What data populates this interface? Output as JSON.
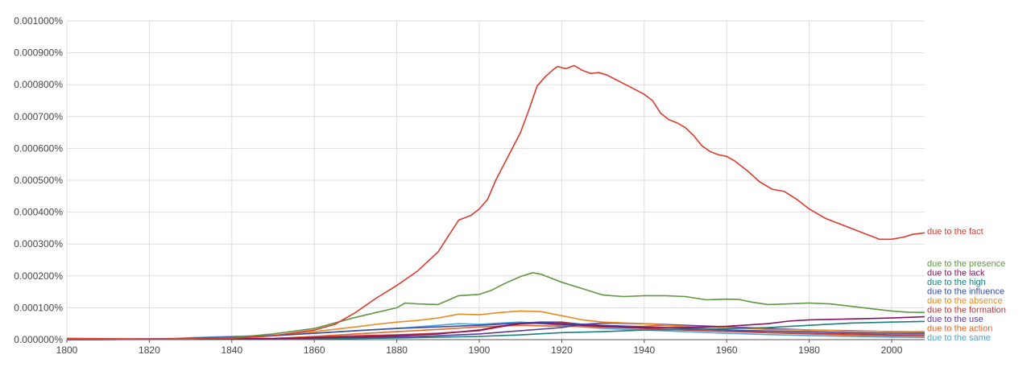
{
  "chart_data": {
    "type": "line",
    "title": "",
    "xlabel": "",
    "ylabel": "",
    "xlim": [
      1800,
      2008
    ],
    "ylim": [
      0,
      0.001
    ],
    "grid": true,
    "legend_position": "right-end-of-lines",
    "x_ticks": [
      1800,
      1820,
      1840,
      1860,
      1880,
      1900,
      1920,
      1940,
      1960,
      1980,
      2000
    ],
    "x_tick_labels": [
      "1800",
      "1820",
      "1840",
      "1860",
      "1880",
      "1900",
      "1920",
      "1940",
      "1960",
      "1980",
      "2000"
    ],
    "y_ticks": [
      0,
      0.0001,
      0.0002,
      0.0003,
      0.0004,
      0.0005,
      0.0006,
      0.0007,
      0.0008,
      0.0009,
      0.001
    ],
    "y_tick_labels": [
      "0.000000%",
      "0.000100%",
      "0.000200%",
      "0.000300%",
      "0.000400%",
      "0.000500%",
      "0.000600%",
      "0.000700%",
      "0.000800%",
      "0.000900%",
      "0.001000%"
    ],
    "series": [
      {
        "name": "due to the fact",
        "color": "#db3b2e",
        "points": [
          [
            1800,
            4e-06
          ],
          [
            1820,
            2e-06
          ],
          [
            1840,
            4e-06
          ],
          [
            1850,
            1.2e-05
          ],
          [
            1860,
            3e-05
          ],
          [
            1865,
            4.8e-05
          ],
          [
            1870,
            8.5e-05
          ],
          [
            1875,
            0.00013
          ],
          [
            1880,
            0.00017
          ],
          [
            1885,
            0.000215
          ],
          [
            1890,
            0.000275
          ],
          [
            1893,
            0.000335
          ],
          [
            1895,
            0.000375
          ],
          [
            1898,
            0.00039
          ],
          [
            1900,
            0.00041
          ],
          [
            1902,
            0.00044
          ],
          [
            1904,
            0.0005
          ],
          [
            1906,
            0.00055
          ],
          [
            1908,
            0.0006
          ],
          [
            1910,
            0.00065
          ],
          [
            1912,
            0.00072
          ],
          [
            1914,
            0.000795
          ],
          [
            1916,
            0.000825
          ],
          [
            1918,
            0.000848
          ],
          [
            1919,
            0.000857
          ],
          [
            1921,
            0.00085
          ],
          [
            1923,
            0.00086
          ],
          [
            1925,
            0.000845
          ],
          [
            1927,
            0.000835
          ],
          [
            1929,
            0.000838
          ],
          [
            1931,
            0.00083
          ],
          [
            1934,
            0.00081
          ],
          [
            1937,
            0.00079
          ],
          [
            1940,
            0.00077
          ],
          [
            1942,
            0.00075
          ],
          [
            1944,
            0.00071
          ],
          [
            1946,
            0.00069
          ],
          [
            1948,
            0.00068
          ],
          [
            1950,
            0.000665
          ],
          [
            1952,
            0.00064
          ],
          [
            1954,
            0.000608
          ],
          [
            1956,
            0.00059
          ],
          [
            1958,
            0.00058
          ],
          [
            1960,
            0.000575
          ],
          [
            1962,
            0.00056
          ],
          [
            1965,
            0.00053
          ],
          [
            1968,
            0.000495
          ],
          [
            1971,
            0.000472
          ],
          [
            1974,
            0.000465
          ],
          [
            1977,
            0.00044
          ],
          [
            1980,
            0.00041
          ],
          [
            1984,
            0.00038
          ],
          [
            1988,
            0.00036
          ],
          [
            1992,
            0.00034
          ],
          [
            1995,
            0.000325
          ],
          [
            1997,
            0.000315
          ],
          [
            2000,
            0.000315
          ],
          [
            2003,
            0.000322
          ],
          [
            2005,
            0.00033
          ],
          [
            2008,
            0.000335
          ]
        ]
      },
      {
        "name": "due to the presence",
        "color": "#5e9741",
        "points": [
          [
            1800,
            1e-06
          ],
          [
            1830,
            2e-06
          ],
          [
            1840,
            6e-06
          ],
          [
            1850,
            1.8e-05
          ],
          [
            1860,
            3.5e-05
          ],
          [
            1870,
            7e-05
          ],
          [
            1875,
            8.5e-05
          ],
          [
            1880,
            0.0001
          ],
          [
            1882,
            0.000115
          ],
          [
            1885,
            0.000112
          ],
          [
            1890,
            0.00011
          ],
          [
            1895,
            0.000138
          ],
          [
            1900,
            0.000142
          ],
          [
            1903,
            0.000155
          ],
          [
            1906,
            0.000175
          ],
          [
            1910,
            0.000198
          ],
          [
            1913,
            0.00021
          ],
          [
            1915,
            0.000205
          ],
          [
            1918,
            0.00019
          ],
          [
            1920,
            0.00018
          ],
          [
            1925,
            0.00016
          ],
          [
            1930,
            0.00014
          ],
          [
            1935,
            0.000135
          ],
          [
            1940,
            0.000138
          ],
          [
            1945,
            0.000138
          ],
          [
            1950,
            0.000135
          ],
          [
            1955,
            0.000125
          ],
          [
            1960,
            0.000127
          ],
          [
            1963,
            0.000126
          ],
          [
            1966,
            0.000118
          ],
          [
            1970,
            0.00011
          ],
          [
            1975,
            0.000112
          ],
          [
            1980,
            0.000115
          ],
          [
            1985,
            0.000112
          ],
          [
            1990,
            0.000105
          ],
          [
            1995,
            9.7e-05
          ],
          [
            2000,
            9e-05
          ],
          [
            2004,
            8.6e-05
          ],
          [
            2008,
            8.5e-05
          ]
        ]
      },
      {
        "name": "due to the lack",
        "color": "#86135d",
        "points": [
          [
            1800,
            0.0
          ],
          [
            1850,
            3e-06
          ],
          [
            1870,
            8e-06
          ],
          [
            1880,
            1.2e-05
          ],
          [
            1890,
            1.8e-05
          ],
          [
            1900,
            3e-05
          ],
          [
            1905,
            4.2e-05
          ],
          [
            1910,
            5e-05
          ],
          [
            1915,
            5.2e-05
          ],
          [
            1920,
            4.8e-05
          ],
          [
            1930,
            4.2e-05
          ],
          [
            1940,
            3.8e-05
          ],
          [
            1950,
            3.8e-05
          ],
          [
            1960,
            4.2e-05
          ],
          [
            1970,
            5e-05
          ],
          [
            1975,
            5.8e-05
          ],
          [
            1980,
            6.2e-05
          ],
          [
            1990,
            6.5e-05
          ],
          [
            2000,
            6.8e-05
          ],
          [
            2008,
            7.2e-05
          ]
        ]
      },
      {
        "name": "due to the high",
        "color": "#1a7e7e",
        "points": [
          [
            1800,
            0.0
          ],
          [
            1860,
            2e-06
          ],
          [
            1880,
            5e-06
          ],
          [
            1900,
            1e-05
          ],
          [
            1910,
            1.5e-05
          ],
          [
            1920,
            2.2e-05
          ],
          [
            1930,
            2.5e-05
          ],
          [
            1940,
            3e-05
          ],
          [
            1950,
            3.2e-05
          ],
          [
            1960,
            3.4e-05
          ],
          [
            1970,
            3.8e-05
          ],
          [
            1980,
            4.5e-05
          ],
          [
            1990,
            5.2e-05
          ],
          [
            2000,
            5.5e-05
          ],
          [
            2008,
            5.7e-05
          ]
        ]
      },
      {
        "name": "due to the influence",
        "color": "#3b4ba6",
        "points": [
          [
            1800,
            0.0
          ],
          [
            1830,
            4e-06
          ],
          [
            1840,
            8e-06
          ],
          [
            1850,
            1.2e-05
          ],
          [
            1860,
            2e-05
          ],
          [
            1870,
            2.8e-05
          ],
          [
            1880,
            3.5e-05
          ],
          [
            1890,
            4e-05
          ],
          [
            1900,
            4.5e-05
          ],
          [
            1910,
            5.2e-05
          ],
          [
            1915,
            5.5e-05
          ],
          [
            1920,
            5.2e-05
          ],
          [
            1930,
            4.5e-05
          ],
          [
            1940,
            4e-05
          ],
          [
            1950,
            3.5e-05
          ],
          [
            1960,
            3e-05
          ],
          [
            1970,
            2.7e-05
          ],
          [
            1980,
            2.5e-05
          ],
          [
            1990,
            2.2e-05
          ],
          [
            2000,
            2e-05
          ],
          [
            2008,
            2e-05
          ]
        ]
      },
      {
        "name": "due to the absence",
        "color": "#ea8a1e",
        "points": [
          [
            1800,
            0.0
          ],
          [
            1840,
            4e-06
          ],
          [
            1850,
            1.2e-05
          ],
          [
            1860,
            2.5e-05
          ],
          [
            1870,
            4e-05
          ],
          [
            1875,
            4.8e-05
          ],
          [
            1880,
            5.5e-05
          ],
          [
            1885,
            6e-05
          ],
          [
            1890,
            6.8e-05
          ],
          [
            1895,
            8e-05
          ],
          [
            1900,
            7.8e-05
          ],
          [
            1905,
            8.5e-05
          ],
          [
            1910,
            9e-05
          ],
          [
            1915,
            8.8e-05
          ],
          [
            1920,
            7.5e-05
          ],
          [
            1925,
            6.2e-05
          ],
          [
            1930,
            5.5e-05
          ],
          [
            1940,
            5e-05
          ],
          [
            1950,
            4.2e-05
          ],
          [
            1960,
            3.8e-05
          ],
          [
            1970,
            3.2e-05
          ],
          [
            1980,
            3e-05
          ],
          [
            1990,
            2.7e-05
          ],
          [
            2000,
            2.5e-05
          ],
          [
            2008,
            2.5e-05
          ]
        ]
      },
      {
        "name": "due to the formation",
        "color": "#c43237",
        "points": [
          [
            1800,
            0.0
          ],
          [
            1850,
            3e-06
          ],
          [
            1860,
            8e-06
          ],
          [
            1870,
            1.2e-05
          ],
          [
            1880,
            1.5e-05
          ],
          [
            1890,
            2e-05
          ],
          [
            1900,
            2.8e-05
          ],
          [
            1905,
            4e-05
          ],
          [
            1910,
            5e-05
          ],
          [
            1915,
            5.5e-05
          ],
          [
            1920,
            5.5e-05
          ],
          [
            1925,
            4.8e-05
          ],
          [
            1930,
            4e-05
          ],
          [
            1940,
            3.5e-05
          ],
          [
            1950,
            3e-05
          ],
          [
            1960,
            2.6e-05
          ],
          [
            1970,
            2.2e-05
          ],
          [
            1980,
            2e-05
          ],
          [
            1990,
            1.8e-05
          ],
          [
            2000,
            1.5e-05
          ],
          [
            2008,
            1.5e-05
          ]
        ]
      },
      {
        "name": "due to the use",
        "color": "#5b3a9e",
        "points": [
          [
            1800,
            0.0
          ],
          [
            1860,
            4e-06
          ],
          [
            1880,
            8e-06
          ],
          [
            1890,
            1.2e-05
          ],
          [
            1900,
            1.8e-05
          ],
          [
            1910,
            2.8e-05
          ],
          [
            1920,
            3.8e-05
          ],
          [
            1925,
            4.8e-05
          ],
          [
            1930,
            5.2e-05
          ],
          [
            1940,
            5e-05
          ],
          [
            1950,
            4.5e-05
          ],
          [
            1960,
            4e-05
          ],
          [
            1970,
            3.5e-05
          ],
          [
            1980,
            3e-05
          ],
          [
            1990,
            2.8e-05
          ],
          [
            2000,
            2.5e-05
          ],
          [
            2008,
            2.4e-05
          ]
        ]
      },
      {
        "name": "due to the action",
        "color": "#e4662a",
        "points": [
          [
            1800,
            0.0
          ],
          [
            1850,
            4e-06
          ],
          [
            1860,
            1e-05
          ],
          [
            1870,
            1.8e-05
          ],
          [
            1880,
            2.5e-05
          ],
          [
            1890,
            3.2e-05
          ],
          [
            1900,
            4e-05
          ],
          [
            1910,
            4.5e-05
          ],
          [
            1920,
            4.2e-05
          ],
          [
            1930,
            4e-05
          ],
          [
            1940,
            4.2e-05
          ],
          [
            1945,
            4.5e-05
          ],
          [
            1950,
            4e-05
          ],
          [
            1960,
            3e-05
          ],
          [
            1970,
            2.2e-05
          ],
          [
            1980,
            1.8e-05
          ],
          [
            1990,
            1.4e-05
          ],
          [
            2000,
            1.2e-05
          ],
          [
            2008,
            1.1e-05
          ]
        ]
      },
      {
        "name": "due to the same",
        "color": "#4da3d8",
        "points": [
          [
            1800,
            2e-06
          ],
          [
            1825,
            2e-06
          ],
          [
            1830,
            6e-06
          ],
          [
            1840,
            1e-05
          ],
          [
            1850,
            1.4e-05
          ],
          [
            1860,
            2e-05
          ],
          [
            1870,
            2.8e-05
          ],
          [
            1880,
            3.5e-05
          ],
          [
            1890,
            4.5e-05
          ],
          [
            1895,
            5e-05
          ],
          [
            1900,
            4.8e-05
          ],
          [
            1905,
            5.2e-05
          ],
          [
            1910,
            5.5e-05
          ],
          [
            1915,
            5e-05
          ],
          [
            1920,
            4.5e-05
          ],
          [
            1930,
            3.5e-05
          ],
          [
            1940,
            3e-05
          ],
          [
            1950,
            2.5e-05
          ],
          [
            1960,
            2e-05
          ],
          [
            1970,
            1.6e-05
          ],
          [
            1980,
            1.3e-05
          ],
          [
            1990,
            1e-05
          ],
          [
            2000,
            8e-06
          ],
          [
            2008,
            7e-06
          ]
        ]
      }
    ]
  }
}
